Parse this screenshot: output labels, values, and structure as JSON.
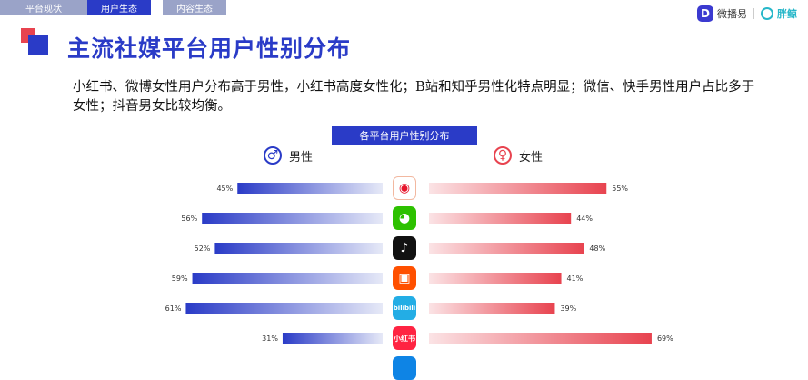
{
  "tabs": [
    {
      "label": "平台现状",
      "active": false
    },
    {
      "label": "用户生态",
      "active": true
    },
    {
      "label": "内容生态",
      "active": false
    }
  ],
  "logos": {
    "brand1": "微播易",
    "brand2": "胖鲸"
  },
  "title": "主流社媒平台用户性别分布",
  "description": "小红书、微博女性用户分布高于男性，小红书高度女性化；B站和知乎男性化特点明显；微信、快手男性用户占比多于女性；抖音男女比较均衡。",
  "chart_title": "各平台用户性别分布",
  "legend": {
    "male": "男性",
    "female": "女性"
  },
  "icons": {
    "weibo": "weibo-icon",
    "wechat": "wechat-icon",
    "douyin": "douyin-icon",
    "kuaishou": "kuaishou-icon",
    "bilibili": "bilibili-icon",
    "xiaohongshu": "xiaohongshu-icon"
  },
  "icon_text": {
    "bilibili": "bilibili",
    "xiaohongshu": "小红书"
  },
  "colors": {
    "male": "#2a3bc7",
    "female": "#e8434f",
    "accent": "#2a3bc7"
  },
  "chart_data": {
    "type": "bar",
    "orientation": "horizontal-butterfly",
    "title": "各平台用户性别分布",
    "categories": [
      "weibo",
      "wechat",
      "douyin",
      "kuaishou",
      "bilibili",
      "xiaohongshu"
    ],
    "series": [
      {
        "name": "男性",
        "values": [
          45,
          56,
          52,
          59,
          61,
          31
        ],
        "labels": [
          "45%",
          "56%",
          "52%",
          "59%",
          "61%",
          "31%"
        ]
      },
      {
        "name": "女性",
        "values": [
          55,
          44,
          48,
          41,
          39,
          69
        ],
        "labels": [
          "55%",
          "44%",
          "48%",
          "41%",
          "39%",
          "69%"
        ]
      }
    ],
    "unit": "%"
  }
}
